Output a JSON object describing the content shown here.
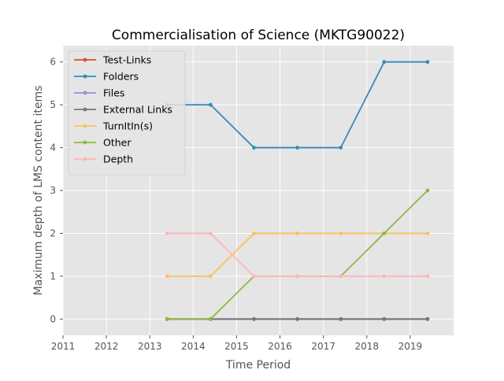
{
  "chart_data": {
    "type": "line",
    "title": "Commercialisation of Science (MKTG90022)",
    "xlabel": "Time Period",
    "ylabel": "Maximum depth of LMS content items",
    "xlim": [
      2011.0,
      2020.0
    ],
    "ylim": [
      -0.38,
      6.38
    ],
    "xticks": [
      2011,
      2012,
      2013,
      2014,
      2015,
      2016,
      2017,
      2018,
      2019
    ],
    "yticks": [
      0,
      1,
      2,
      3,
      4,
      5,
      6
    ],
    "grid": true,
    "legend_position": "upper-left",
    "x": [
      2013.4,
      2014.4,
      2015.4,
      2016.4,
      2017.4,
      2018.4,
      2019.4
    ],
    "series": [
      {
        "name": "Test-Links",
        "color": "#e24a33",
        "values": [
          0,
          0,
          0,
          0,
          0,
          0,
          0
        ]
      },
      {
        "name": "Folders",
        "color": "#348abd",
        "values": [
          5,
          5,
          4,
          4,
          4,
          6,
          6
        ]
      },
      {
        "name": "Files",
        "color": "#988ed5",
        "values": [
          0,
          0,
          0,
          0,
          0,
          0,
          0
        ]
      },
      {
        "name": "External Links",
        "color": "#777777",
        "values": [
          0,
          0,
          0,
          0,
          0,
          0,
          0
        ]
      },
      {
        "name": "TurnItIn(s)",
        "color": "#fbc15e",
        "values": [
          1,
          1,
          2,
          2,
          2,
          2,
          2
        ]
      },
      {
        "name": "Other",
        "color": "#8eba42",
        "values": [
          0,
          0,
          1,
          1,
          1,
          2,
          3
        ]
      },
      {
        "name": "Depth",
        "color": "#ffb5b8",
        "values": [
          2,
          2,
          1,
          1,
          1,
          1,
          1
        ]
      }
    ]
  }
}
